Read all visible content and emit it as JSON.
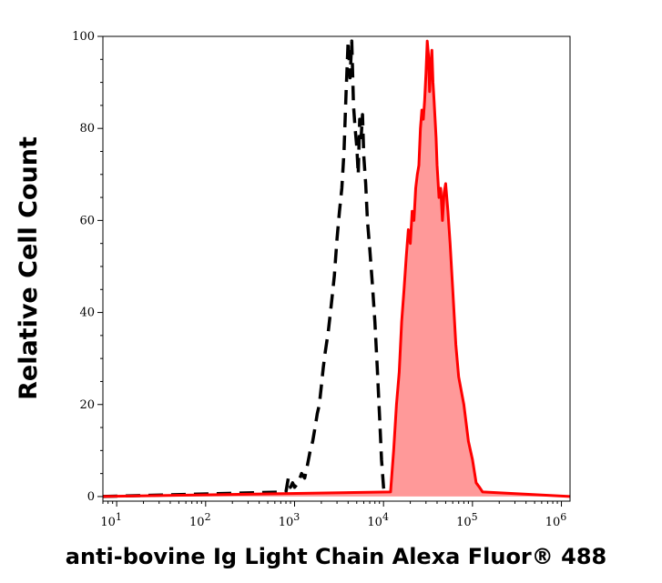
{
  "chart_data": {
    "type": "area",
    "title": "",
    "xlabel": "anti-bovine Ig Light Chain Alexa Fluor® 488",
    "ylabel": "Relative Cell Count",
    "x_scale": "log",
    "xlim": [
      7,
      1250000
    ],
    "ylim": [
      -1,
      100
    ],
    "x_ticks": [
      {
        "base": "10",
        "exp": "1",
        "value": 10
      },
      {
        "base": "10",
        "exp": "2",
        "value": 100
      },
      {
        "base": "10",
        "exp": "3",
        "value": 1000
      },
      {
        "base": "10",
        "exp": "4",
        "value": 10000
      },
      {
        "base": "10",
        "exp": "5",
        "value": 100000
      },
      {
        "base": "10",
        "exp": "6",
        "value": 1000000
      }
    ],
    "y_ticks": [
      "0",
      "20",
      "40",
      "60",
      "80",
      "100"
    ],
    "grid": false,
    "legend": "none",
    "series": [
      {
        "style": "dashed",
        "color": "#000000",
        "fill": "none",
        "x": [
          7,
          800,
          850,
          900,
          950,
          1000,
          1100,
          1200,
          1300,
          1400,
          1500,
          1600,
          1700,
          1800,
          1900,
          2000,
          2100,
          2200,
          2400,
          2600,
          2800,
          3000,
          3200,
          3400,
          3600,
          3800,
          4000,
          4200,
          4400,
          4600,
          4800,
          5000,
          5200,
          5400,
          5600,
          5800,
          6000,
          6300,
          6600,
          7000,
          7500,
          8000,
          8500,
          9000,
          9500,
          10000,
          10500
        ],
        "y": [
          0,
          1,
          4,
          2,
          3,
          2,
          3,
          5,
          4,
          7,
          10,
          12,
          15,
          18,
          20,
          24,
          28,
          31,
          36,
          42,
          48,
          56,
          62,
          67,
          75,
          88,
          99,
          91,
          99,
          85,
          80,
          76,
          70,
          82,
          78,
          83,
          74,
          68,
          60,
          54,
          46,
          38,
          28,
          18,
          8,
          2,
          0
        ]
      },
      {
        "style": "solid",
        "color": "#ff0000",
        "fill": "#ff9999",
        "x": [
          7,
          12000,
          13000,
          14000,
          15000,
          16000,
          17000,
          18000,
          19000,
          20000,
          21000,
          22000,
          23000,
          24000,
          25000,
          26000,
          27000,
          28000,
          29000,
          30000,
          31000,
          32000,
          33000,
          34000,
          35000,
          36000,
          37000,
          38000,
          39000,
          40000,
          42000,
          44000,
          46000,
          48000,
          50000,
          53000,
          56000,
          60000,
          65000,
          70000,
          80000,
          90000,
          100000,
          110000,
          120000,
          130000,
          1250000
        ],
        "y": [
          0,
          1,
          10,
          20,
          27,
          38,
          45,
          52,
          58,
          55,
          62,
          60,
          67,
          70,
          72,
          80,
          84,
          82,
          86,
          92,
          99,
          96,
          88,
          94,
          97,
          90,
          86,
          82,
          78,
          72,
          65,
          67,
          60,
          66,
          68,
          62,
          55,
          45,
          33,
          26,
          20,
          12,
          8,
          3,
          2,
          1,
          0
        ]
      }
    ]
  }
}
